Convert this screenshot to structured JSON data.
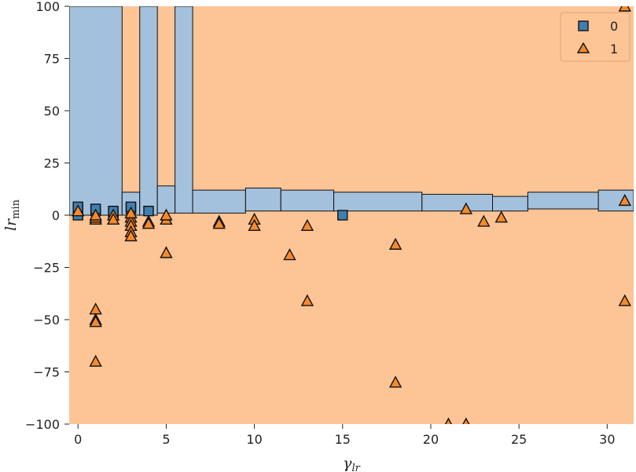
{
  "chart_data": {
    "type": "scatter",
    "title": "",
    "xlabel": "γ",
    "xlabel_sub": "lr",
    "ylabel": "lr",
    "ylabel_sub": "min",
    "xlim": [
      -0.5,
      31.5
    ],
    "ylim": [
      -100,
      100
    ],
    "x_ticks": [
      0,
      5,
      10,
      15,
      20,
      25,
      30
    ],
    "y_ticks": [
      100,
      75,
      50,
      25,
      0,
      -25,
      -50,
      -75,
      -100
    ],
    "x_tick_labels": [
      "0",
      "5",
      "10",
      "15",
      "20",
      "25",
      "30"
    ],
    "y_tick_labels": [
      "100",
      "75",
      "50",
      "25",
      "0",
      "−25",
      "−50",
      "−75",
      "−100"
    ],
    "grid": false,
    "legend_position": "top-right",
    "background_class": "1",
    "colors": {
      "class_0_region": "#a3c1dc",
      "class_1_region": "#fdc496",
      "class_0_marker": "#3f7fb0",
      "class_1_marker": "#f58a2c",
      "edge": "#111111"
    },
    "decision_regions_class_0": [
      {
        "x": [
          -0.5,
          2.5
        ],
        "y": [
          0,
          100
        ]
      },
      {
        "x": [
          2.5,
          3.5
        ],
        "y": [
          0,
          11
        ]
      },
      {
        "x": [
          3.5,
          4.5
        ],
        "y": [
          0,
          100
        ]
      },
      {
        "x": [
          4.5,
          5.5
        ],
        "y": [
          1,
          14
        ]
      },
      {
        "x": [
          5.5,
          6.5
        ],
        "y": [
          1,
          100
        ]
      },
      {
        "x": [
          6.5,
          9.5
        ],
        "y": [
          1,
          12
        ]
      },
      {
        "x": [
          9.5,
          11.5
        ],
        "y": [
          2,
          13
        ]
      },
      {
        "x": [
          11.5,
          14.5
        ],
        "y": [
          2,
          12
        ]
      },
      {
        "x": [
          14.5,
          19.5
        ],
        "y": [
          2,
          11
        ]
      },
      {
        "x": [
          19.5,
          23.5
        ],
        "y": [
          2,
          10
        ]
      },
      {
        "x": [
          23.5,
          25.5
        ],
        "y": [
          2,
          9
        ]
      },
      {
        "x": [
          25.5,
          29.5
        ],
        "y": [
          3,
          11
        ]
      },
      {
        "x": [
          29.5,
          31.5
        ],
        "y": [
          2,
          12
        ]
      }
    ],
    "series": [
      {
        "name": "0",
        "marker": "square",
        "points": [
          [
            0,
            0
          ],
          [
            0,
            3
          ],
          [
            0,
            4
          ],
          [
            1,
            2
          ],
          [
            1,
            3
          ],
          [
            2,
            1
          ],
          [
            2,
            2
          ],
          [
            3,
            3
          ],
          [
            3,
            4
          ],
          [
            4,
            2
          ],
          [
            15,
            0
          ]
        ]
      },
      {
        "name": "1",
        "marker": "triangle",
        "points": [
          [
            0,
            2
          ],
          [
            1,
            -2
          ],
          [
            1,
            -1
          ],
          [
            1,
            0
          ],
          [
            1,
            -45
          ],
          [
            1,
            -50
          ],
          [
            1,
            -51
          ],
          [
            1,
            -70
          ],
          [
            2,
            0
          ],
          [
            2,
            -2
          ],
          [
            3,
            -1
          ],
          [
            3,
            -3
          ],
          [
            3,
            -5
          ],
          [
            3,
            -8
          ],
          [
            3,
            -10
          ],
          [
            3,
            1
          ],
          [
            4,
            -3
          ],
          [
            4,
            -4
          ],
          [
            5,
            -2
          ],
          [
            5,
            0
          ],
          [
            5,
            -18
          ],
          [
            8,
            -3
          ],
          [
            8,
            -4
          ],
          [
            10,
            -2
          ],
          [
            10,
            -5
          ],
          [
            12,
            -19
          ],
          [
            13,
            -5
          ],
          [
            13,
            -41
          ],
          [
            18,
            -14
          ],
          [
            18,
            -80
          ],
          [
            21,
            -100
          ],
          [
            22,
            -100
          ],
          [
            22,
            3
          ],
          [
            23,
            -3
          ],
          [
            24,
            -1
          ],
          [
            31,
            7
          ],
          [
            31,
            100
          ],
          [
            31,
            -41
          ]
        ]
      }
    ]
  }
}
